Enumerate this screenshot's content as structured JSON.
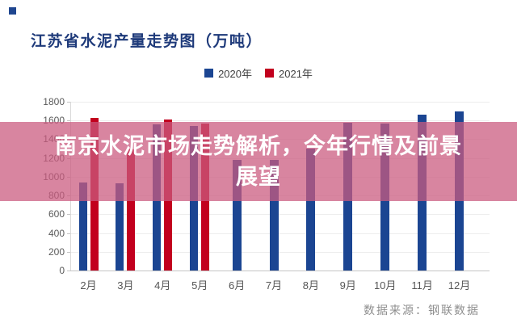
{
  "header": {
    "title": "江苏省水泥产量走势图（万吨）",
    "title_color": "#1E3A7A",
    "corner_square_color": "#1F4690"
  },
  "legend": [
    {
      "label": "2020年",
      "color": "#1B4592"
    },
    {
      "label": "2021年",
      "color": "#C2001E"
    }
  ],
  "banner": {
    "line1": "南京水泥市场走势解析，今年行情及前景",
    "line2": "展望",
    "background": "rgba(203,90,127,0.74)",
    "text_color": "#FFFFFF"
  },
  "footer": {
    "source": "数据来源：钢联数据"
  },
  "chart_data": {
    "type": "bar",
    "title": "江苏省水泥产量走势图（万吨）",
    "categories": [
      "2月",
      "3月",
      "4月",
      "5月",
      "6月",
      "7月",
      "8月",
      "9月",
      "10月",
      "11月",
      "12月"
    ],
    "series": [
      {
        "name": "2020年",
        "color": "#1B4592",
        "values": [
          940,
          930,
          1560,
          1540,
          1180,
          1180,
          1300,
          1580,
          1570,
          1660,
          1700
        ]
      },
      {
        "name": "2021年",
        "color": "#C2001E",
        "values": [
          1630,
          1290,
          1610,
          1570,
          null,
          null,
          null,
          null,
          null,
          null,
          null
        ]
      }
    ],
    "ylabel": "万吨",
    "ylim": [
      0,
      1800
    ],
    "ytick_step": 200,
    "grid": true,
    "legend_position": "top",
    "source": "数据来源：钢联数据"
  }
}
